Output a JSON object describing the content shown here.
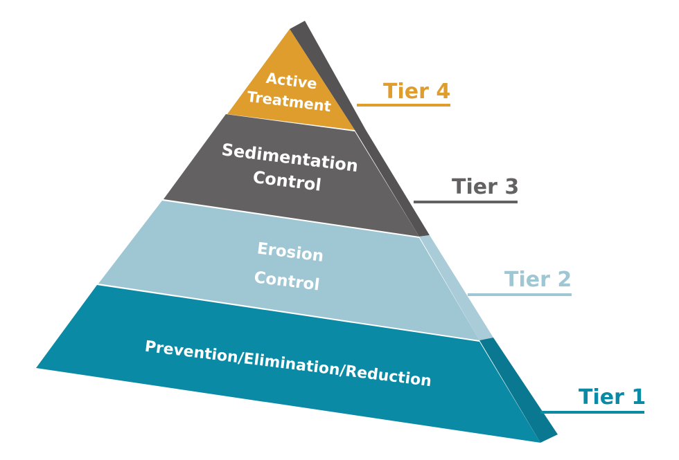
{
  "colors": {
    "tier1": "#0a8aa5",
    "tier1_side": "#0a7890",
    "tier2": "#9ec6d3",
    "tier2_side": "#a9ccd8",
    "tier3": "#636162",
    "tier3_side": "#555354",
    "tier4": "#de9d2d",
    "tier4_side": "#555354",
    "line_tier1": "#0a8aa5",
    "line_tier2": "#9ec6d3",
    "line_tier3": "#636162",
    "line_tier4": "#de9d2d"
  },
  "tiers": [
    {
      "label": "Tier 1",
      "text_lines": [
        "Prevention/Elimination/Reduction"
      ]
    },
    {
      "label": "Tier 2",
      "text_lines": [
        "Erosion",
        "Control"
      ]
    },
    {
      "label": "Tier 3",
      "text_lines": [
        "Sedimentation",
        "Control"
      ]
    },
    {
      "label": "Tier 4",
      "text_lines": [
        "Active",
        "Treatment"
      ]
    }
  ]
}
